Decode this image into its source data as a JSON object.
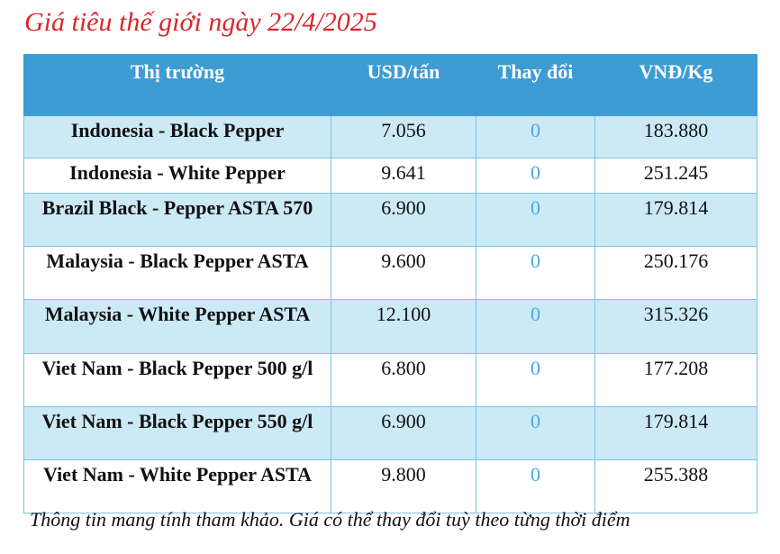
{
  "title": "Giá tiêu thế giới ngày 22/4/2025",
  "colors": {
    "title": "#d9262c",
    "header_bg": "#3d9cd4",
    "alt_row": "#cce9f6",
    "change": "#4aa9dd"
  },
  "headers": [
    "Thị trường",
    "USD/tấn",
    "Thay đổi",
    "VNĐ/Kg"
  ],
  "rows": [
    {
      "market": "Indonesia - Black Pepper",
      "usd": "7.056",
      "change": "0",
      "vnd": "183.880"
    },
    {
      "market": "Indonesia - White Pepper",
      "usd": "9.641",
      "change": "0",
      "vnd": "251.245"
    },
    {
      "market": "Brazil Black - Pepper ASTA 570",
      "usd": "6.900",
      "change": "0",
      "vnd": "179.814"
    },
    {
      "market": "Malaysia - Black Pepper ASTA",
      "usd": "9.600",
      "change": "0",
      "vnd": "250.176"
    },
    {
      "market": "Malaysia - White Pepper ASTA",
      "usd": "12.100",
      "change": "0",
      "vnd": "315.326"
    },
    {
      "market": "Viet Nam - Black Pepper 500 g/l",
      "usd": "6.800",
      "change": "0",
      "vnd": "177.208"
    },
    {
      "market": "Viet Nam - Black Pepper 550 g/l",
      "usd": "6.900",
      "change": "0",
      "vnd": "179.814"
    },
    {
      "market": "Viet Nam - White Pepper ASTA",
      "usd": "9.800",
      "change": "0",
      "vnd": "255.388"
    }
  ],
  "footnote": "Thông tin mang tính tham khảo. Giá có thể thay đổi tuỳ theo từng thời điểm"
}
